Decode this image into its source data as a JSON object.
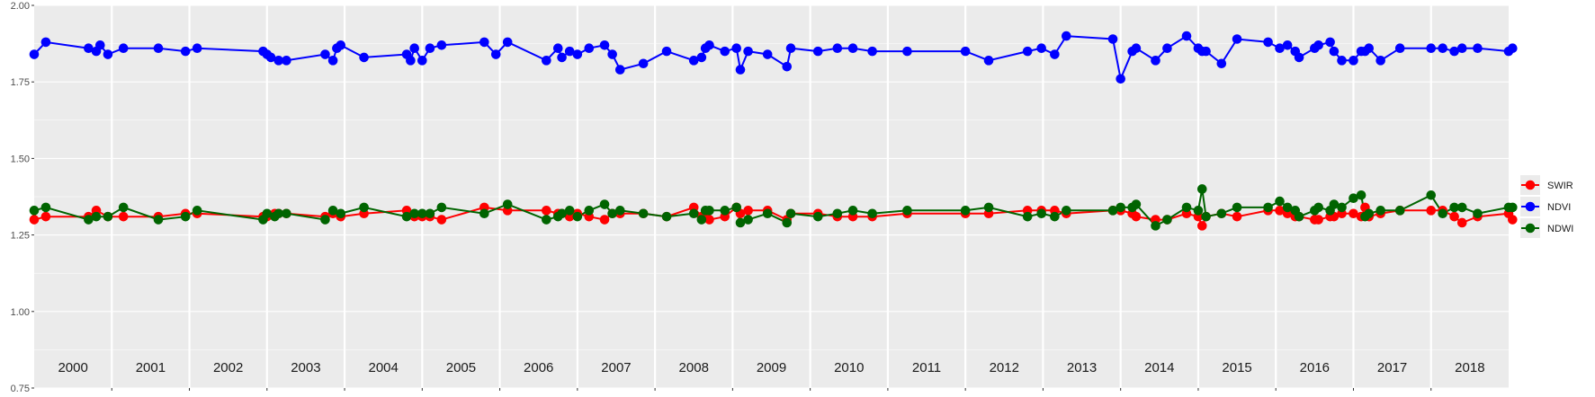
{
  "chart_data": {
    "type": "line",
    "title": "",
    "xlabel": "",
    "ylabel": "",
    "ylim": [
      0.75,
      2.0
    ],
    "xlim": [
      2000,
      2019
    ],
    "y_ticks": [
      "0.75",
      "1.00",
      "1.25",
      "1.50",
      "1.75",
      "2.00"
    ],
    "x_year_labels": [
      "2000",
      "2001",
      "2002",
      "2003",
      "2004",
      "2005",
      "2006",
      "2007",
      "2008",
      "2009",
      "2010",
      "2011",
      "2012",
      "2013",
      "2014",
      "2015",
      "2016",
      "2017",
      "2018"
    ],
    "grid": true,
    "legend": "right",
    "series": [
      {
        "name": "SWIR",
        "color": "#ff0000",
        "x": [
          2000.0,
          2000.15,
          2000.7,
          2000.8,
          2000.95,
          2001.15,
          2001.6,
          2001.95,
          2002.1,
          2002.95,
          2003.0,
          2003.1,
          2003.15,
          2003.25,
          2003.75,
          2003.85,
          2003.95,
          2004.25,
          2004.8,
          2004.9,
          2005.0,
          2005.1,
          2005.25,
          2005.8,
          2006.1,
          2006.6,
          2006.75,
          2006.8,
          2006.9,
          2007.0,
          2007.15,
          2007.35,
          2007.45,
          2007.55,
          2007.85,
          2008.15,
          2008.5,
          2008.6,
          2008.65,
          2008.7,
          2008.9,
          2009.05,
          2009.1,
          2009.2,
          2009.45,
          2009.7,
          2009.75,
          2010.1,
          2010.35,
          2010.55,
          2010.8,
          2011.25,
          2012.0,
          2012.3,
          2012.8,
          2012.98,
          2013.15,
          2013.3,
          2013.9,
          2014.0,
          2014.15,
          2014.2,
          2014.45,
          2014.6,
          2014.85,
          2015.0,
          2015.05,
          2015.1,
          2015.3,
          2015.5,
          2015.9,
          2016.05,
          2016.15,
          2016.25,
          2016.3,
          2016.5,
          2016.55,
          2016.7,
          2016.75,
          2016.85,
          2017.0,
          2017.1,
          2017.15,
          2017.2,
          2017.35,
          2017.6,
          2018.0,
          2018.15,
          2018.3,
          2018.4,
          2018.6,
          2019.0,
          2019.05
        ],
        "values": [
          1.3,
          1.31,
          1.31,
          1.33,
          1.31,
          1.31,
          1.31,
          1.32,
          1.32,
          1.31,
          1.31,
          1.32,
          1.32,
          1.32,
          1.31,
          1.32,
          1.31,
          1.32,
          1.33,
          1.31,
          1.31,
          1.31,
          1.3,
          1.34,
          1.33,
          1.33,
          1.32,
          1.32,
          1.31,
          1.32,
          1.31,
          1.3,
          1.32,
          1.32,
          1.32,
          1.31,
          1.34,
          1.31,
          1.31,
          1.3,
          1.31,
          1.34,
          1.32,
          1.33,
          1.33,
          1.3,
          1.32,
          1.32,
          1.31,
          1.31,
          1.31,
          1.32,
          1.32,
          1.32,
          1.33,
          1.33,
          1.33,
          1.32,
          1.33,
          1.33,
          1.32,
          1.31,
          1.3,
          1.3,
          1.32,
          1.31,
          1.28,
          1.31,
          1.32,
          1.31,
          1.33,
          1.33,
          1.32,
          1.31,
          1.31,
          1.3,
          1.3,
          1.31,
          1.31,
          1.32,
          1.32,
          1.31,
          1.34,
          1.31,
          1.32,
          1.33,
          1.33,
          1.33,
          1.31,
          1.29,
          1.31,
          1.32,
          1.3
        ]
      },
      {
        "name": "NDVI",
        "color": "#0000ff",
        "x": [
          2000.0,
          2000.15,
          2000.7,
          2000.8,
          2000.85,
          2000.95,
          2001.15,
          2001.6,
          2001.95,
          2002.1,
          2002.95,
          2003.0,
          2003.05,
          2003.15,
          2003.25,
          2003.75,
          2003.85,
          2003.9,
          2003.95,
          2004.25,
          2004.8,
          2004.85,
          2004.9,
          2005.0,
          2005.1,
          2005.25,
          2005.8,
          2005.95,
          2006.1,
          2006.6,
          2006.75,
          2006.8,
          2006.9,
          2007.0,
          2007.15,
          2007.35,
          2007.45,
          2007.55,
          2007.85,
          2008.15,
          2008.5,
          2008.6,
          2008.65,
          2008.7,
          2008.9,
          2009.05,
          2009.1,
          2009.2,
          2009.45,
          2009.7,
          2009.75,
          2010.1,
          2010.35,
          2010.55,
          2010.8,
          2011.25,
          2012.0,
          2012.3,
          2012.8,
          2012.98,
          2013.15,
          2013.3,
          2013.9,
          2014.0,
          2014.15,
          2014.2,
          2014.45,
          2014.6,
          2014.85,
          2015.0,
          2015.05,
          2015.1,
          2015.3,
          2015.5,
          2015.9,
          2016.05,
          2016.15,
          2016.25,
          2016.3,
          2016.5,
          2016.55,
          2016.7,
          2016.75,
          2016.85,
          2017.0,
          2017.1,
          2017.15,
          2017.2,
          2017.35,
          2017.6,
          2018.0,
          2018.15,
          2018.3,
          2018.4,
          2018.6,
          2019.0,
          2019.05
        ],
        "values": [
          1.84,
          1.88,
          1.86,
          1.85,
          1.87,
          1.84,
          1.86,
          1.86,
          1.85,
          1.86,
          1.85,
          1.84,
          1.83,
          1.82,
          1.82,
          1.84,
          1.82,
          1.86,
          1.87,
          1.83,
          1.84,
          1.82,
          1.86,
          1.82,
          1.86,
          1.87,
          1.88,
          1.84,
          1.88,
          1.82,
          1.86,
          1.83,
          1.85,
          1.84,
          1.86,
          1.87,
          1.84,
          1.79,
          1.81,
          1.85,
          1.82,
          1.83,
          1.86,
          1.87,
          1.85,
          1.86,
          1.79,
          1.85,
          1.84,
          1.8,
          1.86,
          1.85,
          1.86,
          1.86,
          1.85,
          1.85,
          1.85,
          1.82,
          1.85,
          1.86,
          1.84,
          1.9,
          1.89,
          1.76,
          1.85,
          1.86,
          1.82,
          1.86,
          1.9,
          1.86,
          1.85,
          1.85,
          1.81,
          1.89,
          1.88,
          1.86,
          1.87,
          1.85,
          1.83,
          1.86,
          1.87,
          1.88,
          1.85,
          1.82,
          1.82,
          1.85,
          1.85,
          1.86,
          1.82,
          1.86,
          1.86,
          1.86,
          1.85,
          1.86,
          1.86,
          1.85,
          1.86
        ]
      },
      {
        "name": "NDWI",
        "color": "#006400",
        "x": [
          2000.0,
          2000.15,
          2000.7,
          2000.8,
          2000.95,
          2001.15,
          2001.6,
          2001.95,
          2002.1,
          2002.95,
          2003.0,
          2003.1,
          2003.15,
          2003.25,
          2003.75,
          2003.85,
          2003.95,
          2004.25,
          2004.8,
          2004.9,
          2005.0,
          2005.1,
          2005.25,
          2005.8,
          2006.1,
          2006.6,
          2006.75,
          2006.8,
          2006.9,
          2007.0,
          2007.15,
          2007.35,
          2007.45,
          2007.55,
          2007.85,
          2008.15,
          2008.5,
          2008.6,
          2008.65,
          2008.7,
          2008.9,
          2009.05,
          2009.1,
          2009.2,
          2009.45,
          2009.7,
          2009.75,
          2010.1,
          2010.35,
          2010.55,
          2010.8,
          2011.25,
          2012.0,
          2012.3,
          2012.8,
          2012.98,
          2013.15,
          2013.3,
          2013.9,
          2014.0,
          2014.15,
          2014.2,
          2014.45,
          2014.6,
          2014.85,
          2015.0,
          2015.05,
          2015.1,
          2015.3,
          2015.5,
          2015.9,
          2016.05,
          2016.15,
          2016.25,
          2016.3,
          2016.5,
          2016.55,
          2016.7,
          2016.75,
          2016.85,
          2017.0,
          2017.1,
          2017.15,
          2017.2,
          2017.35,
          2017.6,
          2018.0,
          2018.15,
          2018.3,
          2018.4,
          2018.6,
          2019.0,
          2019.05
        ],
        "values": [
          1.33,
          1.34,
          1.3,
          1.31,
          1.31,
          1.34,
          1.3,
          1.31,
          1.33,
          1.3,
          1.32,
          1.31,
          1.32,
          1.32,
          1.3,
          1.33,
          1.32,
          1.34,
          1.31,
          1.32,
          1.32,
          1.32,
          1.34,
          1.32,
          1.35,
          1.3,
          1.31,
          1.32,
          1.33,
          1.31,
          1.33,
          1.35,
          1.32,
          1.33,
          1.32,
          1.31,
          1.32,
          1.3,
          1.33,
          1.33,
          1.33,
          1.34,
          1.29,
          1.3,
          1.32,
          1.29,
          1.32,
          1.31,
          1.32,
          1.33,
          1.32,
          1.33,
          1.33,
          1.34,
          1.31,
          1.32,
          1.31,
          1.33,
          1.33,
          1.34,
          1.34,
          1.35,
          1.28,
          1.3,
          1.34,
          1.33,
          1.4,
          1.31,
          1.32,
          1.34,
          1.34,
          1.36,
          1.34,
          1.33,
          1.31,
          1.33,
          1.34,
          1.33,
          1.35,
          1.34,
          1.37,
          1.38,
          1.31,
          1.32,
          1.33,
          1.33,
          1.38,
          1.32,
          1.34,
          1.34,
          1.32,
          1.34,
          1.34
        ]
      }
    ]
  }
}
